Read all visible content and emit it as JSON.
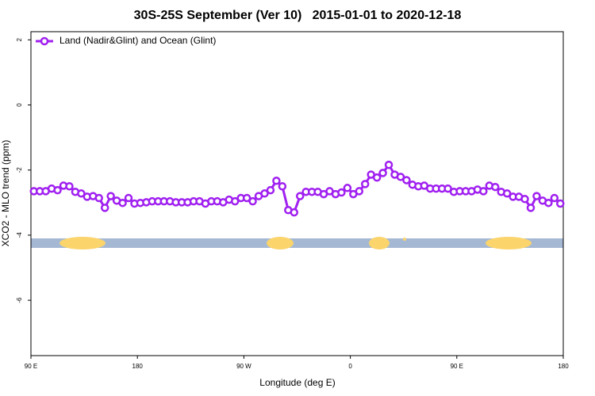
{
  "chart_data": {
    "type": "line",
    "title": "30S-25S September (Ver 10)   2015-01-01 to 2020-12-18",
    "x_label": "Longitude (deg E)",
    "y_label": "XCO2 - MLO trend (ppm)",
    "x": [
      92.5,
      97.5,
      102.5,
      107.5,
      112.5,
      117.5,
      122.5,
      127.5,
      132.5,
      137.5,
      142.5,
      147.5,
      152.5,
      157.5,
      162.5,
      167.5,
      172.5,
      177.5,
      182.5,
      187.5,
      192.5,
      197.5,
      202.5,
      207.5,
      212.5,
      217.5,
      222.5,
      227.5,
      232.5,
      237.5,
      242.5,
      247.5,
      252.5,
      257.5,
      262.5,
      267.5,
      272.5,
      277.5,
      282.5,
      287.5,
      292.5,
      297.5,
      302.5,
      307.5,
      312.5,
      317.5,
      322.5,
      327.5,
      332.5,
      337.5,
      342.5,
      347.5,
      352.5,
      357.5,
      362.5,
      367.5,
      372.5,
      377.5,
      382.5,
      387.5,
      392.5,
      397.5,
      402.5,
      407.5,
      412.5,
      417.5,
      422.5,
      427.5,
      432.5,
      437.5,
      442.5,
      447.5,
      452.5,
      457.5,
      462.5,
      467.5,
      472.5,
      477.5,
      482.5,
      487.5,
      492.5,
      497.5,
      502.5,
      507.5,
      512.5,
      517.5,
      522.5,
      527.5,
      532.5,
      537.5
    ],
    "series": [
      {
        "name": "Land (Nadir&Glint) and Ocean (Glint)",
        "color": "#a020f0",
        "values": [
          -2.65,
          -2.65,
          -2.65,
          -2.57,
          -2.62,
          -2.48,
          -2.5,
          -2.67,
          -2.72,
          -2.82,
          -2.8,
          -2.86,
          -3.16,
          -2.8,
          -2.94,
          -3.01,
          -2.86,
          -3.03,
          -3.01,
          -2.99,
          -2.96,
          -2.96,
          -2.96,
          -2.96,
          -2.99,
          -2.99,
          -2.99,
          -2.96,
          -2.96,
          -3.03,
          -2.96,
          -2.96,
          -2.99,
          -2.91,
          -2.96,
          -2.86,
          -2.86,
          -2.96,
          -2.8,
          -2.72,
          -2.62,
          -2.33,
          -2.5,
          -3.23,
          -3.3,
          -2.8,
          -2.67,
          -2.67,
          -2.67,
          -2.74,
          -2.65,
          -2.74,
          -2.69,
          -2.55,
          -2.74,
          -2.65,
          -2.43,
          -2.14,
          -2.23,
          -2.09,
          -1.84,
          -2.14,
          -2.21,
          -2.31,
          -2.45,
          -2.5,
          -2.48,
          -2.57,
          -2.57,
          -2.57,
          -2.57,
          -2.67,
          -2.65,
          -2.65,
          -2.65,
          -2.6,
          -2.65,
          -2.48,
          -2.52,
          -2.67,
          -2.72,
          -2.82,
          -2.82,
          -2.89,
          -3.16,
          -2.8,
          -2.94,
          -3.01,
          -2.86,
          -3.03
        ]
      }
    ],
    "xlim": [
      90,
      540
    ],
    "xticks": [
      {
        "value": 90,
        "label": "90 E"
      },
      180,
      {
        "value": 270,
        "label": "90 W"
      },
      {
        "value": 360,
        "label": "0"
      },
      {
        "value": 450,
        "label": "90 E"
      },
      {
        "value": 540,
        "label": "180"
      }
    ],
    "ylim": [
      -7.7,
      2.25
    ],
    "yticks": [
      -6,
      -4,
      -2,
      0,
      2
    ],
    "legend": "top-left",
    "grid": false
  }
}
